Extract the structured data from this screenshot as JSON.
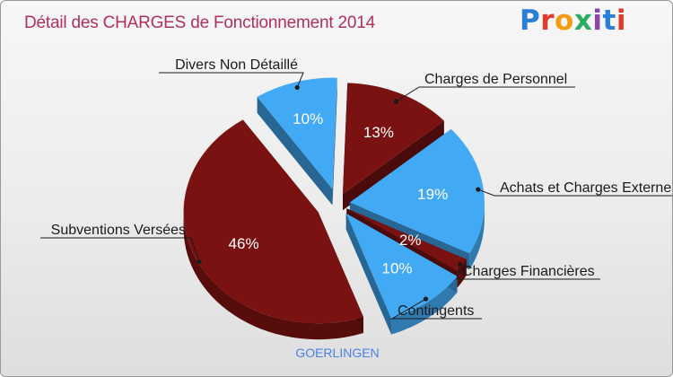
{
  "title": "Détail des CHARGES de Fonctionnement 2014",
  "logo": {
    "text": "Proxiti",
    "colors": [
      "#2b7fd4",
      "#e23b2e",
      "#f39c12",
      "#27ae60",
      "#8e44ad",
      "#2b7fd4",
      "#e23b2e"
    ]
  },
  "commune": "GOERLINGEN",
  "colors": {
    "dark": "#7a1212",
    "blue": "#42aaf5",
    "title": "#b0305a"
  },
  "chart_data": {
    "type": "pie",
    "title": "Détail des CHARGES de Fonctionnement 2014",
    "subtitle": "GOERLINGEN",
    "slices": [
      {
        "label": "Charges de Personnel",
        "value": 13,
        "pct_label": "13%",
        "color": "#7a1212"
      },
      {
        "label": "Achats et Charges Externes",
        "value": 19,
        "pct_label": "19%",
        "color": "#42aaf5"
      },
      {
        "label": "Charges Financières",
        "value": 2,
        "pct_label": "2%",
        "color": "#7a1212"
      },
      {
        "label": "Contingents",
        "value": 10,
        "pct_label": "10%",
        "color": "#42aaf5"
      },
      {
        "label": "Subventions Versées",
        "value": 46,
        "pct_label": "46%",
        "color": "#7a1212"
      },
      {
        "label": "Divers Non Détaillé",
        "value": 10,
        "pct_label": "10%",
        "color": "#42aaf5"
      }
    ]
  }
}
